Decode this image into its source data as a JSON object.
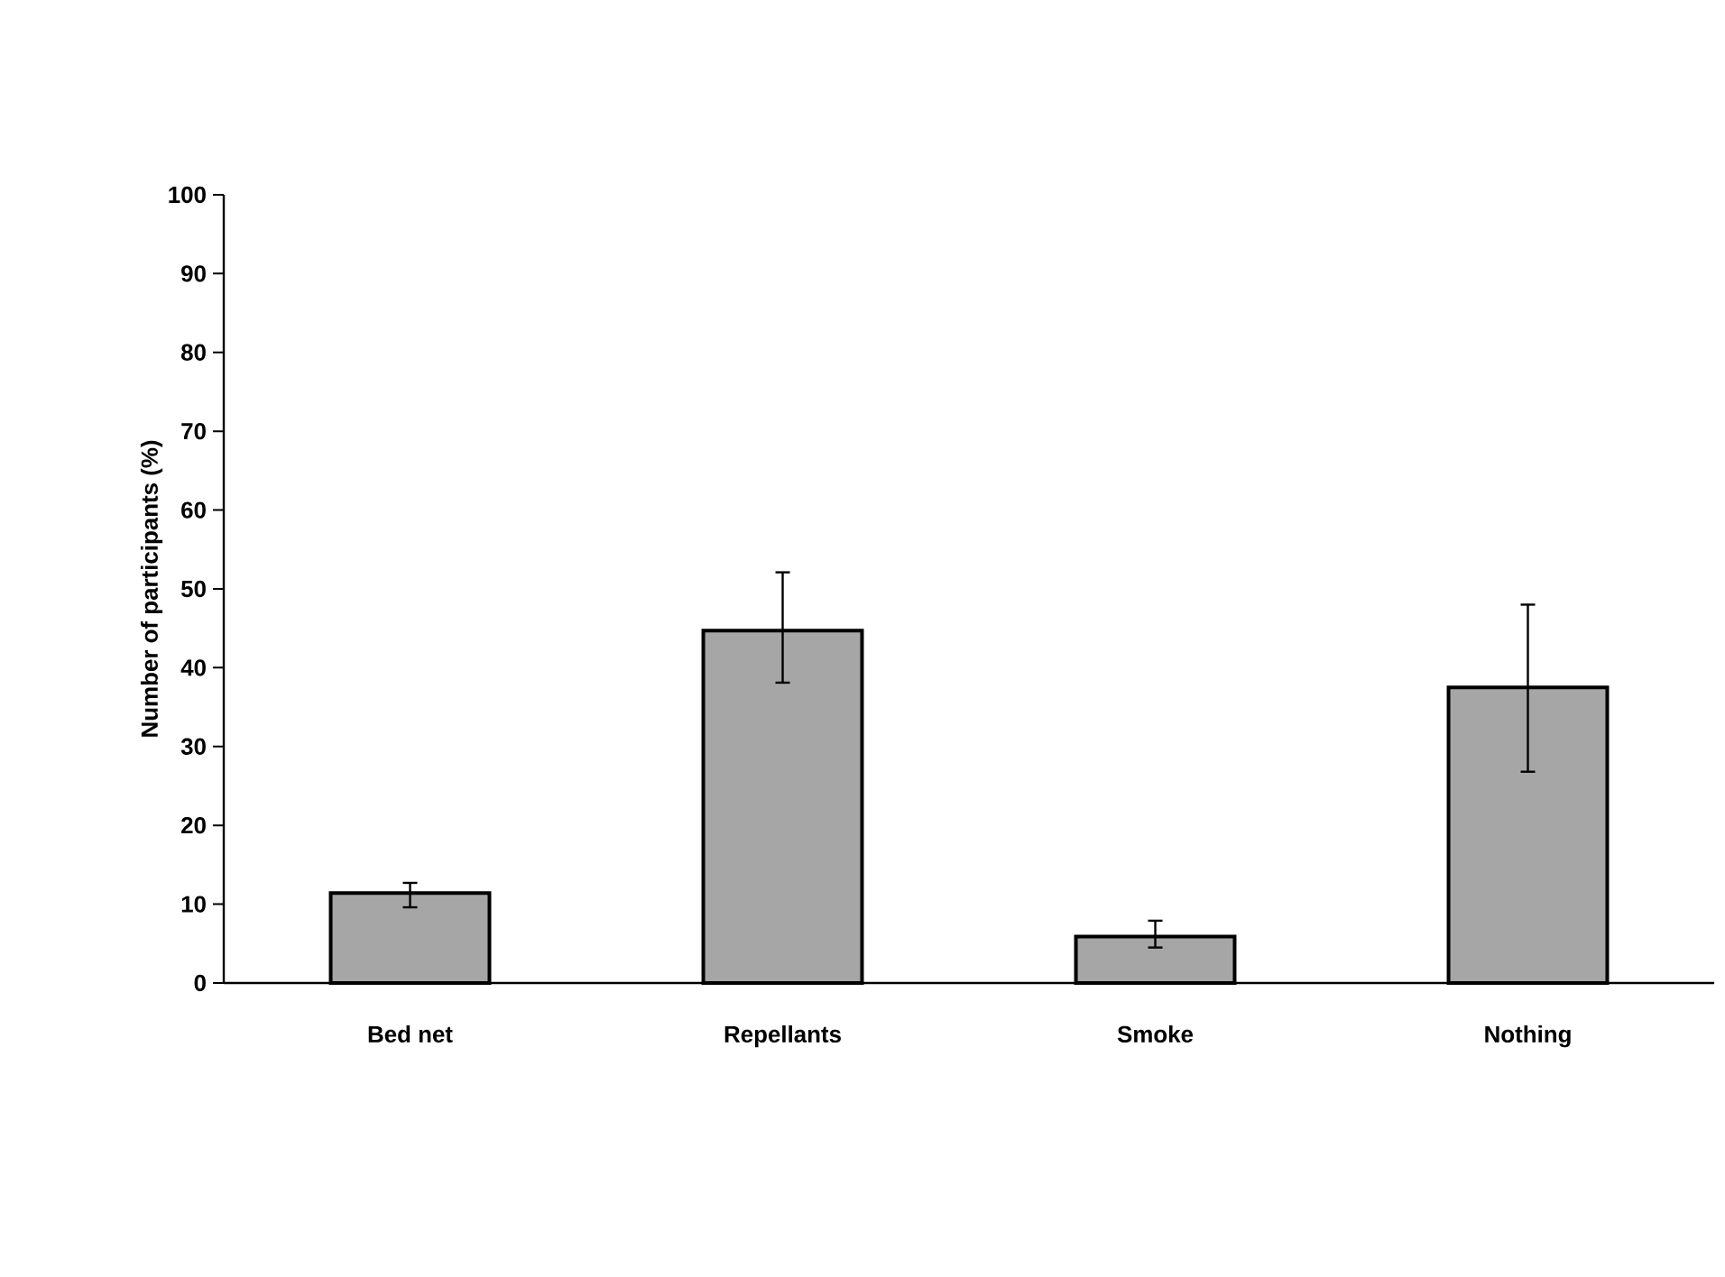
{
  "chart_data": {
    "type": "bar",
    "ylabel": "Number of participants (%)",
    "categories": [
      "Bed net",
      "Repellants",
      "Smoke",
      "Nothing"
    ],
    "values": [
      11.4,
      44.7,
      5.9,
      37.5
    ],
    "errors": [
      [
        9.6,
        12.7
      ],
      [
        38.1,
        52.1
      ],
      [
        4.5,
        7.9
      ],
      [
        26.8,
        48.0
      ]
    ],
    "color": "#a6a6a6",
    "ylim": [
      0,
      100
    ],
    "yticks": [
      0,
      10,
      20,
      30,
      40,
      50,
      60,
      70,
      80,
      90,
      100
    ]
  }
}
